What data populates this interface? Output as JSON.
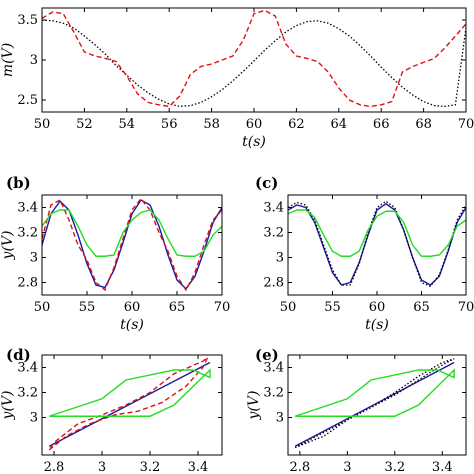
{
  "colors": {
    "dotted": "#000000",
    "red_dashed": "#dd1111",
    "green": "#22dd22",
    "blue": "#1a1aa6",
    "axis": "#000000"
  },
  "chart_data": [
    {
      "id": "a",
      "type": "line",
      "panel_label": "",
      "xlabel": "t(s)",
      "ylabel": "m(V)",
      "xlim": [
        50,
        70
      ],
      "ylim": [
        2.35,
        3.65
      ],
      "xticks": [
        50,
        52,
        54,
        56,
        58,
        60,
        62,
        64,
        66,
        68,
        70
      ],
      "yticks": [
        2.5,
        3,
        3.5
      ],
      "ytick_labels": [
        "2.5",
        "3",
        "3.5"
      ],
      "series": [
        {
          "style": "dotted",
          "color": "#000000",
          "x": [
            50,
            50.5,
            51,
            51.5,
            52,
            52.5,
            53,
            53.5,
            54,
            54.5,
            55,
            55.5,
            56,
            56.5,
            57,
            57.5,
            58,
            58.5,
            59,
            59.5,
            60,
            60.5,
            61,
            61.5,
            62,
            62.5,
            63,
            63.5,
            64,
            64.5,
            65,
            65.5,
            66,
            66.5,
            67,
            67.5,
            68,
            68.5,
            69,
            69.5,
            70
          ],
          "y": [
            3.5,
            3.49,
            3.46,
            3.4,
            3.3,
            3.19,
            3.07,
            2.93,
            2.81,
            2.69,
            2.59,
            2.51,
            2.45,
            2.42,
            2.43,
            2.47,
            2.54,
            2.63,
            2.74,
            2.86,
            2.99,
            3.12,
            3.24,
            3.35,
            3.43,
            3.48,
            3.49,
            3.46,
            3.39,
            3.3,
            3.18,
            3.05,
            2.91,
            2.78,
            2.66,
            2.56,
            2.48,
            2.43,
            2.42,
            2.44,
            3.4
          ]
        },
        {
          "style": "dashed",
          "color": "#dd1111",
          "x": [
            50,
            50.5,
            51,
            51.5,
            52,
            52.5,
            53,
            53.5,
            54,
            54.5,
            55,
            55.5,
            56,
            56.5,
            57,
            57.5,
            58,
            58.5,
            59,
            59.5,
            60,
            60.5,
            61,
            61.5,
            62,
            62.5,
            63,
            63.5,
            64,
            64.5,
            65,
            65.5,
            66,
            66.5,
            67,
            67.5,
            68,
            68.5,
            69,
            69.5,
            70
          ],
          "y": [
            3.52,
            3.6,
            3.58,
            3.35,
            3.1,
            3.05,
            3.02,
            2.98,
            2.8,
            2.58,
            2.47,
            2.44,
            2.42,
            2.55,
            2.82,
            2.92,
            2.95,
            3.0,
            3.05,
            3.25,
            3.58,
            3.62,
            3.55,
            3.2,
            3.05,
            3.02,
            2.98,
            2.85,
            2.65,
            2.5,
            2.44,
            2.42,
            2.44,
            2.48,
            2.85,
            2.92,
            2.97,
            3.02,
            3.15,
            3.3,
            3.45
          ]
        }
      ]
    },
    {
      "id": "b",
      "type": "line",
      "panel_label": "(b)",
      "xlabel": "t(s)",
      "ylabel": "y(V)",
      "xlim": [
        50,
        70
      ],
      "ylim": [
        2.7,
        3.5
      ],
      "xticks": [
        50,
        55,
        60,
        65,
        70
      ],
      "yticks": [
        2.8,
        3.0,
        3.2,
        3.4
      ],
      "ytick_labels": [
        "2.8",
        "3",
        "3.2",
        "3.4"
      ],
      "series": [
        {
          "style": "solid",
          "color": "#1a1aa6",
          "x": [
            50,
            51,
            52,
            53,
            54,
            55,
            56,
            57,
            58,
            59,
            60,
            61,
            62,
            63,
            64,
            65,
            66,
            67,
            68,
            69,
            70
          ],
          "y": [
            3.1,
            3.35,
            3.45,
            3.38,
            3.18,
            2.95,
            2.78,
            2.76,
            2.9,
            3.12,
            3.35,
            3.46,
            3.42,
            3.25,
            3.02,
            2.82,
            2.75,
            2.85,
            3.05,
            3.28,
            3.4
          ]
        },
        {
          "style": "dashed",
          "color": "#dd1111",
          "x": [
            50,
            51,
            52,
            53,
            54,
            55,
            56,
            57,
            58,
            59,
            60,
            61,
            62,
            63,
            64,
            65,
            66,
            67,
            68,
            69,
            70
          ],
          "y": [
            3.15,
            3.42,
            3.46,
            3.3,
            3.1,
            2.98,
            2.8,
            2.74,
            2.92,
            3.15,
            3.38,
            3.47,
            3.38,
            3.2,
            3.05,
            2.85,
            2.74,
            2.88,
            3.1,
            3.3,
            3.38
          ]
        },
        {
          "style": "solid",
          "color": "#22dd22",
          "x": [
            50,
            51,
            52,
            53,
            54,
            55,
            56,
            57,
            58,
            59,
            60,
            61,
            62,
            63,
            64,
            65,
            66,
            67,
            68,
            69,
            70
          ],
          "y": [
            3.25,
            3.35,
            3.38,
            3.38,
            3.25,
            3.1,
            3.01,
            3.01,
            3.02,
            3.2,
            3.3,
            3.36,
            3.38,
            3.3,
            3.15,
            3.02,
            3.01,
            3.01,
            3.05,
            3.18,
            3.25
          ]
        }
      ]
    },
    {
      "id": "c",
      "type": "line",
      "panel_label": "(c)",
      "xlabel": "t(s)",
      "ylabel": "",
      "xlim": [
        50,
        70
      ],
      "ylim": [
        2.7,
        3.5
      ],
      "xticks": [
        50,
        55,
        60,
        65,
        70
      ],
      "yticks": [
        2.8,
        3.0,
        3.2,
        3.4
      ],
      "ytick_labels": [
        "2.8",
        "3",
        "3.2",
        "3.4"
      ],
      "series": [
        {
          "style": "solid",
          "color": "#1a1aa6",
          "x": [
            50,
            51,
            52,
            53,
            54,
            55,
            56,
            57,
            58,
            59,
            60,
            61,
            62,
            63,
            64,
            65,
            66,
            67,
            68,
            69,
            70
          ],
          "y": [
            3.38,
            3.42,
            3.4,
            3.28,
            3.08,
            2.88,
            2.78,
            2.8,
            2.96,
            3.18,
            3.38,
            3.43,
            3.38,
            3.22,
            3.0,
            2.82,
            2.78,
            2.85,
            3.05,
            3.28,
            3.4
          ]
        },
        {
          "style": "dotted",
          "color": "#000000",
          "x": [
            50,
            51,
            52,
            53,
            54,
            55,
            56,
            57,
            58,
            59,
            60,
            61,
            62,
            63,
            64,
            65,
            66,
            67,
            68,
            69,
            70
          ],
          "y": [
            3.4,
            3.44,
            3.42,
            3.3,
            3.1,
            2.9,
            2.78,
            2.78,
            2.95,
            3.2,
            3.4,
            3.45,
            3.4,
            3.22,
            3.0,
            2.8,
            2.77,
            2.86,
            3.06,
            3.3,
            3.42
          ]
        },
        {
          "style": "solid",
          "color": "#22dd22",
          "x": [
            50,
            51,
            52,
            53,
            54,
            55,
            56,
            57,
            58,
            59,
            60,
            61,
            62,
            63,
            64,
            65,
            66,
            67,
            68,
            69,
            70
          ],
          "y": [
            3.35,
            3.38,
            3.38,
            3.32,
            3.18,
            3.05,
            3.01,
            3.01,
            3.05,
            3.22,
            3.33,
            3.37,
            3.37,
            3.28,
            3.1,
            3.01,
            3.01,
            3.02,
            3.1,
            3.25,
            3.3
          ]
        }
      ]
    },
    {
      "id": "d",
      "type": "line",
      "panel_label": "(d)",
      "xlabel": "",
      "ylabel": "y(V)",
      "xlim": [
        2.75,
        3.5
      ],
      "ylim": [
        2.7,
        3.5
      ],
      "xticks": [
        2.8,
        3.0,
        3.2,
        3.4
      ],
      "xtick_labels": [
        "2.8",
        "3",
        "3.2",
        "3.4"
      ],
      "yticks": [
        3.0,
        3.2,
        3.4
      ],
      "ytick_labels": [
        "3",
        "3.2",
        "3.4"
      ],
      "series": [
        {
          "style": "solid",
          "color": "#1a1aa6",
          "x": [
            2.78,
            3.45
          ],
          "y": [
            2.77,
            3.44
          ]
        },
        {
          "style": "dashed",
          "color": "#dd1111",
          "x": [
            2.78,
            2.85,
            2.95,
            3.05,
            3.15,
            3.25,
            3.35,
            3.42,
            3.44,
            3.42,
            3.3,
            3.2,
            3.1,
            3.0,
            2.9,
            2.8,
            2.78
          ],
          "y": [
            2.74,
            2.85,
            2.95,
            3.02,
            3.05,
            3.12,
            3.25,
            3.4,
            3.48,
            3.45,
            3.35,
            3.2,
            3.1,
            3.02,
            2.95,
            2.8,
            2.74
          ]
        },
        {
          "style": "solid",
          "color": "#22dd22",
          "x": [
            2.78,
            3.0,
            3.2,
            3.3,
            3.45,
            3.45,
            3.38,
            3.3,
            3.1,
            3.0,
            2.78
          ],
          "y": [
            3.01,
            3.01,
            3.01,
            3.1,
            3.38,
            3.32,
            3.38,
            3.38,
            3.3,
            3.15,
            3.01
          ]
        }
      ]
    },
    {
      "id": "e",
      "type": "line",
      "panel_label": "(e)",
      "xlabel": "",
      "ylabel": "y(V)",
      "xlim": [
        2.75,
        3.5
      ],
      "ylim": [
        2.7,
        3.5
      ],
      "xticks": [
        2.8,
        3.0,
        3.2,
        3.4
      ],
      "xtick_labels": [
        "2.8",
        "3",
        "3.2",
        "3.4"
      ],
      "yticks": [
        3.0,
        3.2,
        3.4
      ],
      "ytick_labels": [
        "3",
        "3.2",
        "3.4"
      ],
      "series": [
        {
          "style": "solid",
          "color": "#1a1aa6",
          "x": [
            2.78,
            3.45
          ],
          "y": [
            2.77,
            3.44
          ]
        },
        {
          "style": "dotted",
          "color": "#000000",
          "x": [
            2.78,
            2.9,
            3.0,
            3.1,
            3.2,
            3.3,
            3.4,
            3.45,
            3.4,
            3.3,
            3.2,
            3.1,
            3.0,
            2.9,
            2.78
          ],
          "y": [
            2.76,
            2.85,
            2.98,
            3.08,
            3.18,
            3.3,
            3.42,
            3.47,
            3.44,
            3.33,
            3.2,
            3.08,
            2.98,
            2.88,
            2.76
          ]
        },
        {
          "style": "solid",
          "color": "#22dd22",
          "x": [
            2.78,
            3.0,
            3.2,
            3.3,
            3.45,
            3.45,
            3.38,
            3.3,
            3.1,
            3.0,
            2.78
          ],
          "y": [
            3.01,
            3.01,
            3.01,
            3.1,
            3.38,
            3.32,
            3.38,
            3.38,
            3.3,
            3.15,
            3.01
          ]
        }
      ]
    }
  ]
}
